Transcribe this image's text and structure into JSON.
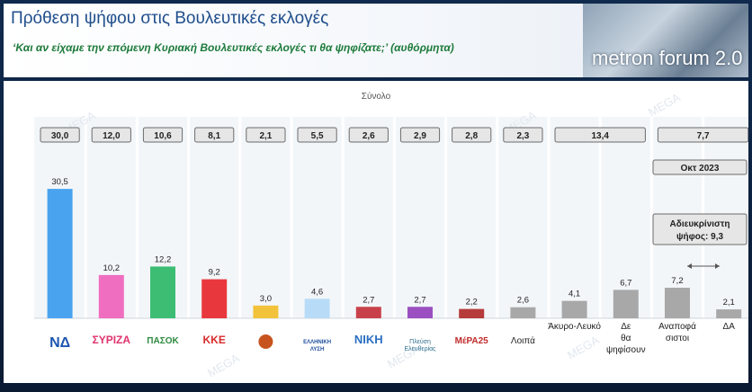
{
  "header": {
    "title": "Πρόθεση ψήφου στις Βουλευτικές εκλογές",
    "subtitle": "‘Και αν είχαμε την επόμενη Κυριακή Βουλευτικές εκλογές τι θα ψηφίζατε;’ (αυθόρμητα)",
    "brand": "metron forum 2.0",
    "watermark": "MEGA"
  },
  "colors": {
    "nd": "#4aa3ee",
    "syriza": "#f06ec0",
    "pasok": "#3dbd74",
    "kke": "#e8383d",
    "spartiates": "#f2c33a",
    "elliniki_lysi": "#b8dcf7",
    "niki": "#c8414a",
    "plefsi": "#9b4fc1",
    "mera25": "#b63b3b",
    "grey": "#a8a8a8"
  },
  "chart_data": {
    "type": "bar",
    "title": "Σύνολο",
    "categories": [
      "ΝΔ",
      "ΣΥΡΙΖΑ",
      "ΠΑΣΟΚ",
      "ΚΚΕ",
      "ΣΠΑΡΤΙΑΤΕΣ",
      "ΕΛΛΗΝΙΚΗ ΛΥΣΗ",
      "ΝΙΚΗ",
      "Πλεύση Ελευθερίας",
      "ΜέΡΑ25",
      "Λοιπά",
      "Άκυρο-Λευκό",
      "Δε θα ψηφίσουν",
      "Αναποφάσιστοι",
      "ΔΑ"
    ],
    "category_labels": [
      "",
      "ΣΥΡΙΖΑ",
      "ΠΑΣΟΚ",
      "ΚΚΕ",
      "",
      "ΕΛΛΗΝΙΚΗ ΛΥΣΗ",
      "ΝΙΚΗ",
      "Πλεύση Ελευθερίας",
      "ΜέΡΑ25",
      "Λοιπά",
      "Άκυρο-Λευκό",
      "Δε θα ψηφίσουν",
      "Αναποφά σιστοι",
      "ΔΑ"
    ],
    "series": [
      {
        "values": [
          30.5,
          10.2,
          12.2,
          9.2,
          3.0,
          4.6,
          2.7,
          2.7,
          2.2,
          2.6,
          4.1,
          6.7,
          7.2,
          2.1
        ]
      }
    ],
    "value_labels": [
      "30,5",
      "10,2",
      "12,2",
      "9,2",
      "3,0",
      "4,6",
      "2,7",
      "2,7",
      "2,2",
      "2,6",
      "4,1",
      "6,7",
      "7,2",
      "2,1"
    ],
    "comparison": {
      "label": "Οκτ 2023",
      "values": [
        {
          "label": "30,0",
          "span": [
            0,
            0
          ]
        },
        {
          "label": "12,0",
          "span": [
            1,
            1
          ]
        },
        {
          "label": "10,6",
          "span": [
            2,
            2
          ]
        },
        {
          "label": "8,1",
          "span": [
            3,
            3
          ]
        },
        {
          "label": "2,1",
          "span": [
            4,
            4
          ]
        },
        {
          "label": "5,5",
          "span": [
            5,
            5
          ]
        },
        {
          "label": "2,6",
          "span": [
            6,
            6
          ]
        },
        {
          "label": "2,9",
          "span": [
            7,
            7
          ]
        },
        {
          "label": "2,8",
          "span": [
            8,
            8
          ]
        },
        {
          "label": "2,3",
          "span": [
            9,
            9
          ]
        },
        {
          "label": "13,4",
          "span": [
            10,
            11
          ]
        },
        {
          "label": "7,7",
          "span": [
            12,
            13
          ]
        }
      ]
    },
    "annotation": "Αδιευκρίνιστη ψήφος: 9,3",
    "ylim": [
      0,
      32
    ],
    "grid": false,
    "legend": "none"
  }
}
